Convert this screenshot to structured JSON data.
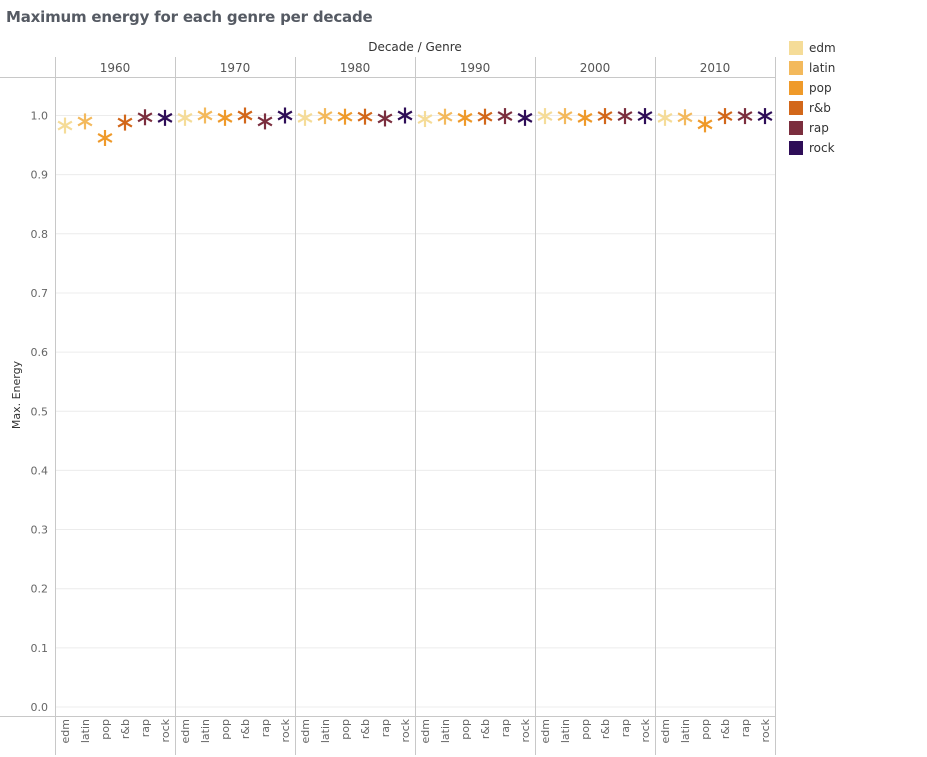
{
  "title": "Maximum energy for each genre per decade",
  "chart_data": {
    "type": "scatter",
    "mark": "asterisk",
    "column_header": "Decade / Genre",
    "ylabel": "Max. Energy",
    "ylim": [
      0.0,
      1.0
    ],
    "yticks": [
      "0.0",
      "0.1",
      "0.2",
      "0.3",
      "0.4",
      "0.5",
      "0.6",
      "0.7",
      "0.8",
      "0.9",
      "1.0"
    ],
    "decades": [
      "1960",
      "1970",
      "1980",
      "1990",
      "2000",
      "2010"
    ],
    "genres": [
      "edm",
      "latin",
      "pop",
      "r&b",
      "rap",
      "rock"
    ],
    "colors": {
      "edm": "#f5dc98",
      "latin": "#f3b95c",
      "pop": "#ef9a2a",
      "r&b": "#d2671a",
      "rap": "#7b2e3e",
      "rock": "#2e0d57"
    },
    "series": [
      {
        "decade": "1960",
        "values": [
          0.983,
          0.99,
          0.962,
          0.988,
          0.997,
          0.996
        ]
      },
      {
        "decade": "1970",
        "values": [
          0.996,
          1.0,
          0.996,
          1.0,
          0.99,
          1.0
        ]
      },
      {
        "decade": "1980",
        "values": [
          0.996,
          0.999,
          0.998,
          0.998,
          0.995,
          1.0
        ]
      },
      {
        "decade": "1990",
        "values": [
          0.994,
          0.998,
          0.996,
          0.998,
          0.999,
          0.996
        ]
      },
      {
        "decade": "2000",
        "values": [
          0.999,
          0.999,
          0.996,
          0.999,
          0.999,
          0.999
        ]
      },
      {
        "decade": "2010",
        "values": [
          0.996,
          0.997,
          0.985,
          0.999,
          0.999,
          0.999
        ]
      }
    ],
    "legend_position": "right",
    "grid": true
  }
}
